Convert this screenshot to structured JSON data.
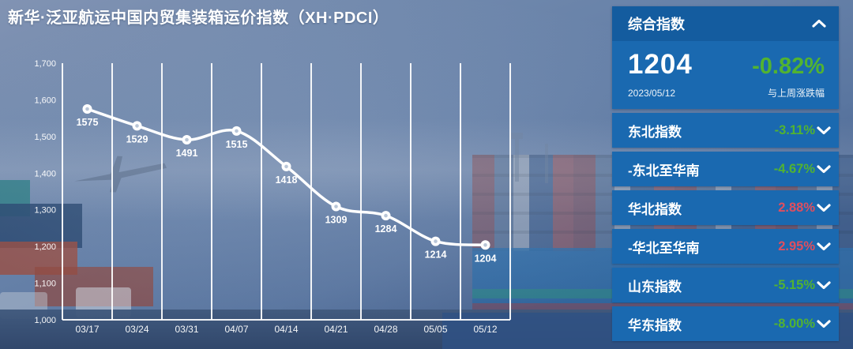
{
  "title": "新华·泛亚航运中国内贸集装箱运价指数（XH·PDCI）",
  "theme": {
    "panel_header_bg": "#145c9f",
    "panel_bg": "#1a69b0",
    "up_color": "#e04e5e",
    "down_color": "#52b331",
    "line_color": "#ffffff"
  },
  "chart_data": {
    "type": "line",
    "x": [
      "03/17",
      "03/24",
      "03/31",
      "04/07",
      "04/14",
      "04/21",
      "04/28",
      "05/05",
      "05/12"
    ],
    "values": [
      1575,
      1529,
      1491,
      1515,
      1418,
      1309,
      1284,
      1214,
      1204
    ],
    "ylim": [
      1000,
      1700
    ],
    "ytick_step": 100,
    "ytick_labels": [
      "1,700",
      "1,600",
      "1,500",
      "1,400",
      "1,300",
      "1,200",
      "1,100",
      "1,000"
    ],
    "grid": "vertical-only",
    "smooth": true,
    "point_labels_visible": true,
    "legend": "none"
  },
  "sidebar": {
    "summary": {
      "label": "综合指数",
      "value": "1204",
      "change": "-0.82%",
      "change_direction": "down",
      "date": "2023/05/12",
      "note": "与上周涨跌幅",
      "collapse_icon": "chevron-up"
    },
    "rows": [
      {
        "label": "东北指数",
        "change": "-3.11%",
        "direction": "down"
      },
      {
        "label": "-东北至华南",
        "change": "-4.67%",
        "direction": "down"
      },
      {
        "label": "华北指数",
        "change": "2.88%",
        "direction": "up"
      },
      {
        "label": "-华北至华南",
        "change": "2.95%",
        "direction": "up"
      },
      {
        "label": "山东指数",
        "change": "-5.15%",
        "direction": "down"
      },
      {
        "label": "华东指数",
        "change": "-8.00%",
        "direction": "down"
      }
    ]
  }
}
